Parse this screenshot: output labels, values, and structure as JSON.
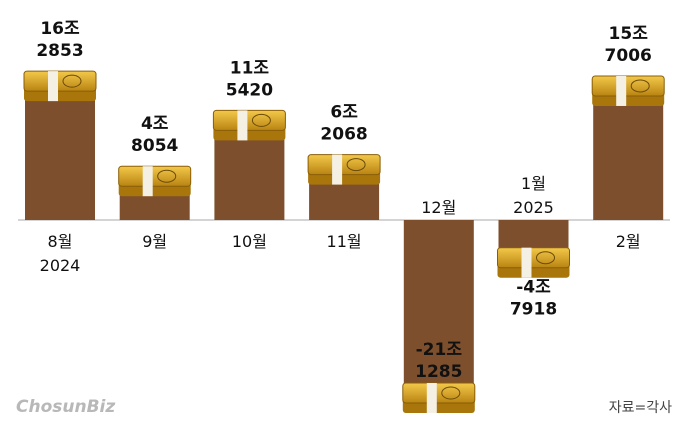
{
  "chart_data": {
    "type": "bar",
    "categories": [
      "8월 2024",
      "9월",
      "10월",
      "11월",
      "12월",
      "1월 2025",
      "2월"
    ],
    "values": [
      162853,
      48054,
      115420,
      62068,
      -211285,
      -47918,
      157006
    ],
    "value_labels": [
      "16조 2853",
      "4조 8054",
      "11조 5420",
      "6조 2068",
      "-21조 1285",
      "-4조 7918",
      "15조 7006"
    ],
    "color": "#7d4f2c",
    "source": "자료=각사",
    "logo": "ChosunBiz"
  }
}
